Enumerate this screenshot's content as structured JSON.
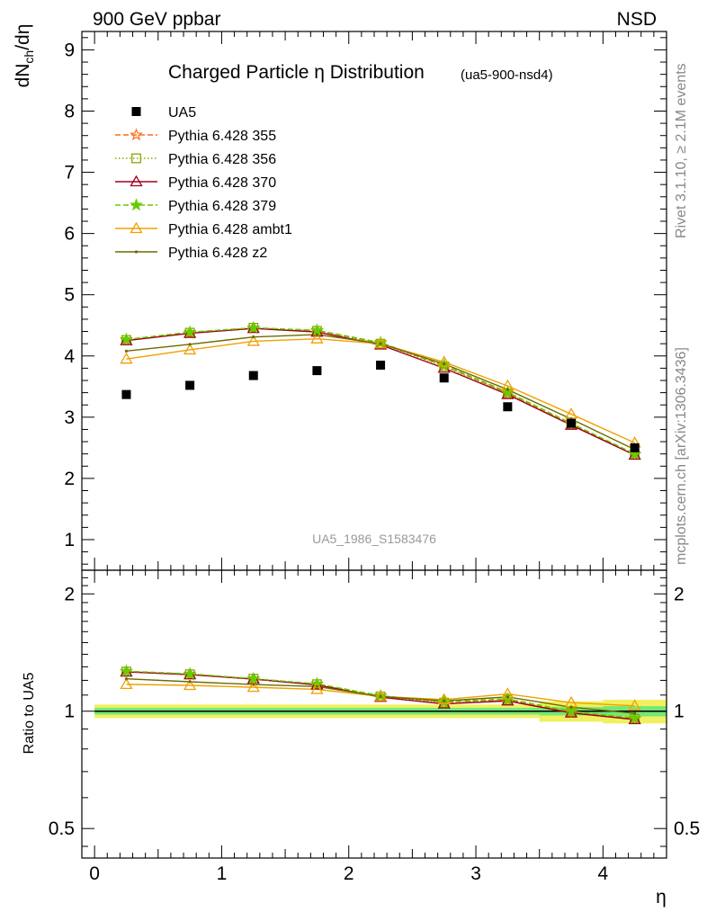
{
  "header": {
    "left": "900 GeV ppbar",
    "right": "NSD"
  },
  "side_labels": {
    "rivet": "Rivet 3.1.10, ≥ 2.1M events",
    "mcplots": "mcplots.cern.ch [arXiv:1306.3436]"
  },
  "chart_data": [
    {
      "type": "line",
      "title": "Charged Particle η Distribution",
      "subtitle": "(ua5-900-nsd4)",
      "watermark": "UA5_1986_S1583476",
      "ylabel": "dN_ch/dη",
      "xlabel": "",
      "xlim": [
        -0.1,
        4.5
      ],
      "ylim": [
        0.5,
        9.3
      ],
      "yticks": [
        "1",
        "2",
        "3",
        "4",
        "5",
        "6",
        "7",
        "8",
        "9"
      ],
      "x": [
        0.25,
        0.75,
        1.25,
        1.75,
        2.25,
        2.75,
        3.25,
        3.75,
        4.25
      ],
      "data": {
        "name": "UA5",
        "values": [
          3.37,
          3.52,
          3.68,
          3.76,
          3.85,
          3.64,
          3.17,
          2.9,
          2.5
        ]
      },
      "series": [
        {
          "name": "Pythia 6.428 355",
          "color": "#ff6d1f",
          "dash": "dashed",
          "marker": "star-open",
          "values": [
            4.26,
            4.37,
            4.45,
            4.41,
            4.21,
            3.84,
            3.39,
            2.88,
            2.39
          ]
        },
        {
          "name": "Pythia 6.428 356",
          "color": "#8ca600",
          "dash": "dotted",
          "marker": "square-open",
          "values": [
            4.26,
            4.38,
            4.46,
            4.41,
            4.2,
            3.83,
            3.39,
            2.88,
            2.39
          ]
        },
        {
          "name": "Pythia 6.428 370",
          "color": "#a0001c",
          "dash": "solid",
          "marker": "triangle-open",
          "values": [
            4.25,
            4.37,
            4.45,
            4.39,
            4.18,
            3.8,
            3.37,
            2.87,
            2.38
          ]
        },
        {
          "name": "Pythia 6.428 379",
          "color": "#66cc00",
          "dash": "dashed",
          "marker": "star",
          "values": [
            4.27,
            4.39,
            4.46,
            4.42,
            4.22,
            3.85,
            3.41,
            2.9,
            2.4
          ]
        },
        {
          "name": "Pythia 6.428 ambt1",
          "color": "#f0a000",
          "dash": "solid",
          "marker": "triangle-open",
          "values": [
            3.95,
            4.1,
            4.24,
            4.28,
            4.2,
            3.9,
            3.51,
            3.05,
            2.58
          ]
        },
        {
          "name": "Pythia 6.428 z2",
          "color": "#6b6b00",
          "dash": "solid",
          "marker": "dot",
          "values": [
            4.08,
            4.19,
            4.31,
            4.35,
            4.2,
            3.87,
            3.45,
            2.97,
            2.47
          ]
        }
      ]
    },
    {
      "type": "line",
      "title": "",
      "xlabel": "η",
      "ylabel": "Ratio to UA5",
      "xlim": [
        -0.1,
        4.5
      ],
      "ylim": [
        0.42,
        2.3
      ],
      "log_y": true,
      "xticks": [
        "0",
        "1",
        "2",
        "3",
        "4"
      ],
      "yticks": [
        "0.5",
        "1",
        "2"
      ],
      "reference": 1.0,
      "band_colors": {
        "inner": "#77e677",
        "outer": "#f0f060"
      },
      "x": [
        0.25,
        0.75,
        1.25,
        1.75,
        2.25,
        2.75,
        3.25,
        3.75,
        4.25
      ],
      "band_inner": [
        0.02,
        0.02,
        0.02,
        0.02,
        0.02,
        0.02,
        0.02,
        0.025,
        0.03
      ],
      "band_outer": [
        0.04,
        0.04,
        0.04,
        0.04,
        0.04,
        0.04,
        0.04,
        0.06,
        0.07
      ],
      "series": [
        {
          "name": "Pythia 6.428 355",
          "values": [
            1.264,
            1.241,
            1.209,
            1.173,
            1.094,
            1.055,
            1.069,
            0.993,
            0.956
          ]
        },
        {
          "name": "Pythia 6.428 356",
          "values": [
            1.264,
            1.244,
            1.212,
            1.173,
            1.091,
            1.052,
            1.069,
            0.993,
            0.956
          ]
        },
        {
          "name": "Pythia 6.428 370",
          "values": [
            1.261,
            1.241,
            1.209,
            1.168,
            1.086,
            1.044,
            1.063,
            0.99,
            0.952
          ]
        },
        {
          "name": "Pythia 6.428 379",
          "values": [
            1.267,
            1.247,
            1.212,
            1.176,
            1.096,
            1.058,
            1.076,
            1.0,
            0.96
          ]
        },
        {
          "name": "Pythia 6.428 ambt1",
          "values": [
            1.172,
            1.165,
            1.152,
            1.138,
            1.091,
            1.071,
            1.107,
            1.052,
            1.032
          ]
        },
        {
          "name": "Pythia 6.428 z2",
          "values": [
            1.211,
            1.19,
            1.171,
            1.157,
            1.091,
            1.063,
            1.088,
            1.024,
            0.988
          ]
        }
      ]
    }
  ]
}
